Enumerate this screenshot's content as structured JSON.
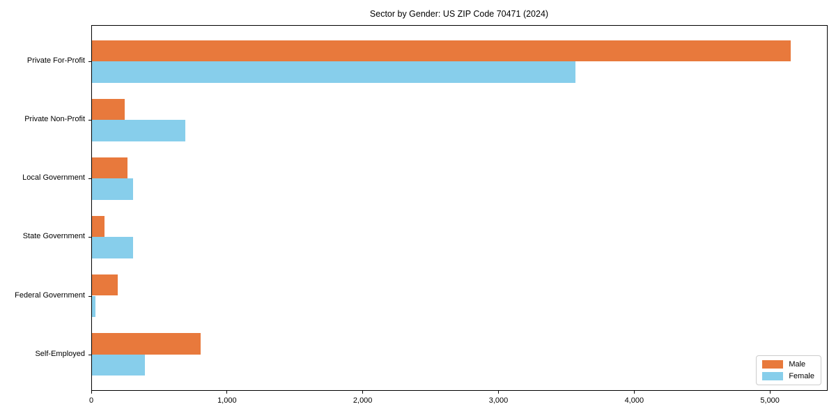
{
  "chart_data": {
    "type": "bar",
    "orientation": "horizontal",
    "title": "Sector by Gender: US ZIP Code 70471 (2024)",
    "categories": [
      "Private For-Profit",
      "Private Non-Profit",
      "Local Government",
      "State Government",
      "Federal Government",
      "Self-Employed"
    ],
    "series": [
      {
        "name": "Male",
        "color": "#e8793c",
        "values": [
          5150,
          240,
          260,
          90,
          190,
          800
        ]
      },
      {
        "name": "Female",
        "color": "#87ceeb",
        "values": [
          3560,
          690,
          300,
          305,
          25,
          390
        ]
      }
    ],
    "xlabel": "",
    "ylabel": "",
    "x_ticks": [
      0,
      1000,
      2000,
      3000,
      4000,
      5000
    ],
    "x_tick_labels": [
      "0",
      "1,000",
      "2,000",
      "3,000",
      "4,000",
      "5,000"
    ],
    "xlim": [
      0,
      5420
    ],
    "grid": false,
    "legend_position": "lower right",
    "background_color": "#ffffff",
    "text_color": "#000000"
  }
}
